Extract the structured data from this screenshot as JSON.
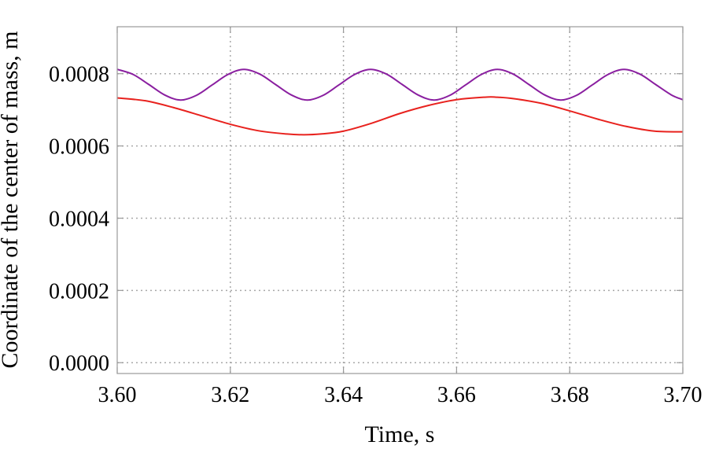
{
  "chart_data": {
    "type": "line",
    "xlabel": "Time, s",
    "ylabel": "Coordinate of the center of mass, m",
    "xlim": [
      3.6,
      3.7
    ],
    "ylim": [
      -3e-05,
      0.00093
    ],
    "grid": true,
    "grid_style": "dotted",
    "x_ticks": [
      3.6,
      3.62,
      3.64,
      3.66,
      3.68,
      3.7
    ],
    "x_tick_labels": [
      "3.60",
      "3.62",
      "3.64",
      "3.66",
      "3.68",
      "3.70"
    ],
    "y_ticks": [
      0.0,
      0.0002,
      0.0004,
      0.0006,
      0.0008
    ],
    "y_tick_labels": [
      "0.0000",
      "0.0002",
      "0.0004",
      "0.0006",
      "0.0008"
    ],
    "series": [
      {
        "color": "#e8221e",
        "x": [
          3.6,
          3.605,
          3.61,
          3.615,
          3.62,
          3.625,
          3.63,
          3.633,
          3.636,
          3.64,
          3.645,
          3.65,
          3.655,
          3.66,
          3.665,
          3.667,
          3.67,
          3.675,
          3.68,
          3.685,
          3.69,
          3.695,
          3.7
        ],
        "values": [
          0.000733,
          0.000725,
          0.000706,
          0.000683,
          0.00066,
          0.000642,
          0.000633,
          0.000631,
          0.000633,
          0.000641,
          0.000663,
          0.00069,
          0.000712,
          0.000728,
          0.000735,
          0.000735,
          0.000731,
          0.000718,
          0.000697,
          0.000674,
          0.000654,
          0.000641,
          0.000639
        ]
      },
      {
        "color": "#8a1fa0",
        "x": [
          3.6,
          3.6028,
          3.6056,
          3.6084,
          3.6112,
          3.614,
          3.6168,
          3.6196,
          3.6224,
          3.6252,
          3.628,
          3.6308,
          3.6336,
          3.6364,
          3.6392,
          3.642,
          3.6448,
          3.6476,
          3.6504,
          3.6532,
          3.656,
          3.6588,
          3.6616,
          3.6644,
          3.6672,
          3.67,
          3.6728,
          3.6756,
          3.6784,
          3.6812,
          3.684,
          3.6868,
          3.6896,
          3.6924,
          3.6952,
          3.698,
          3.7
        ],
        "values": [
          0.000812,
          0.000798,
          0.00077,
          0.000741,
          0.000727,
          0.00074,
          0.000769,
          0.000798,
          0.000812,
          0.000799,
          0.00077,
          0.000741,
          0.000727,
          0.00074,
          0.000769,
          0.000798,
          0.000812,
          0.000799,
          0.00077,
          0.000741,
          0.000727,
          0.00074,
          0.000769,
          0.000798,
          0.000812,
          0.000799,
          0.00077,
          0.000741,
          0.000727,
          0.00074,
          0.000769,
          0.000798,
          0.000812,
          0.000799,
          0.00077,
          0.000741,
          0.000728
        ]
      }
    ]
  }
}
